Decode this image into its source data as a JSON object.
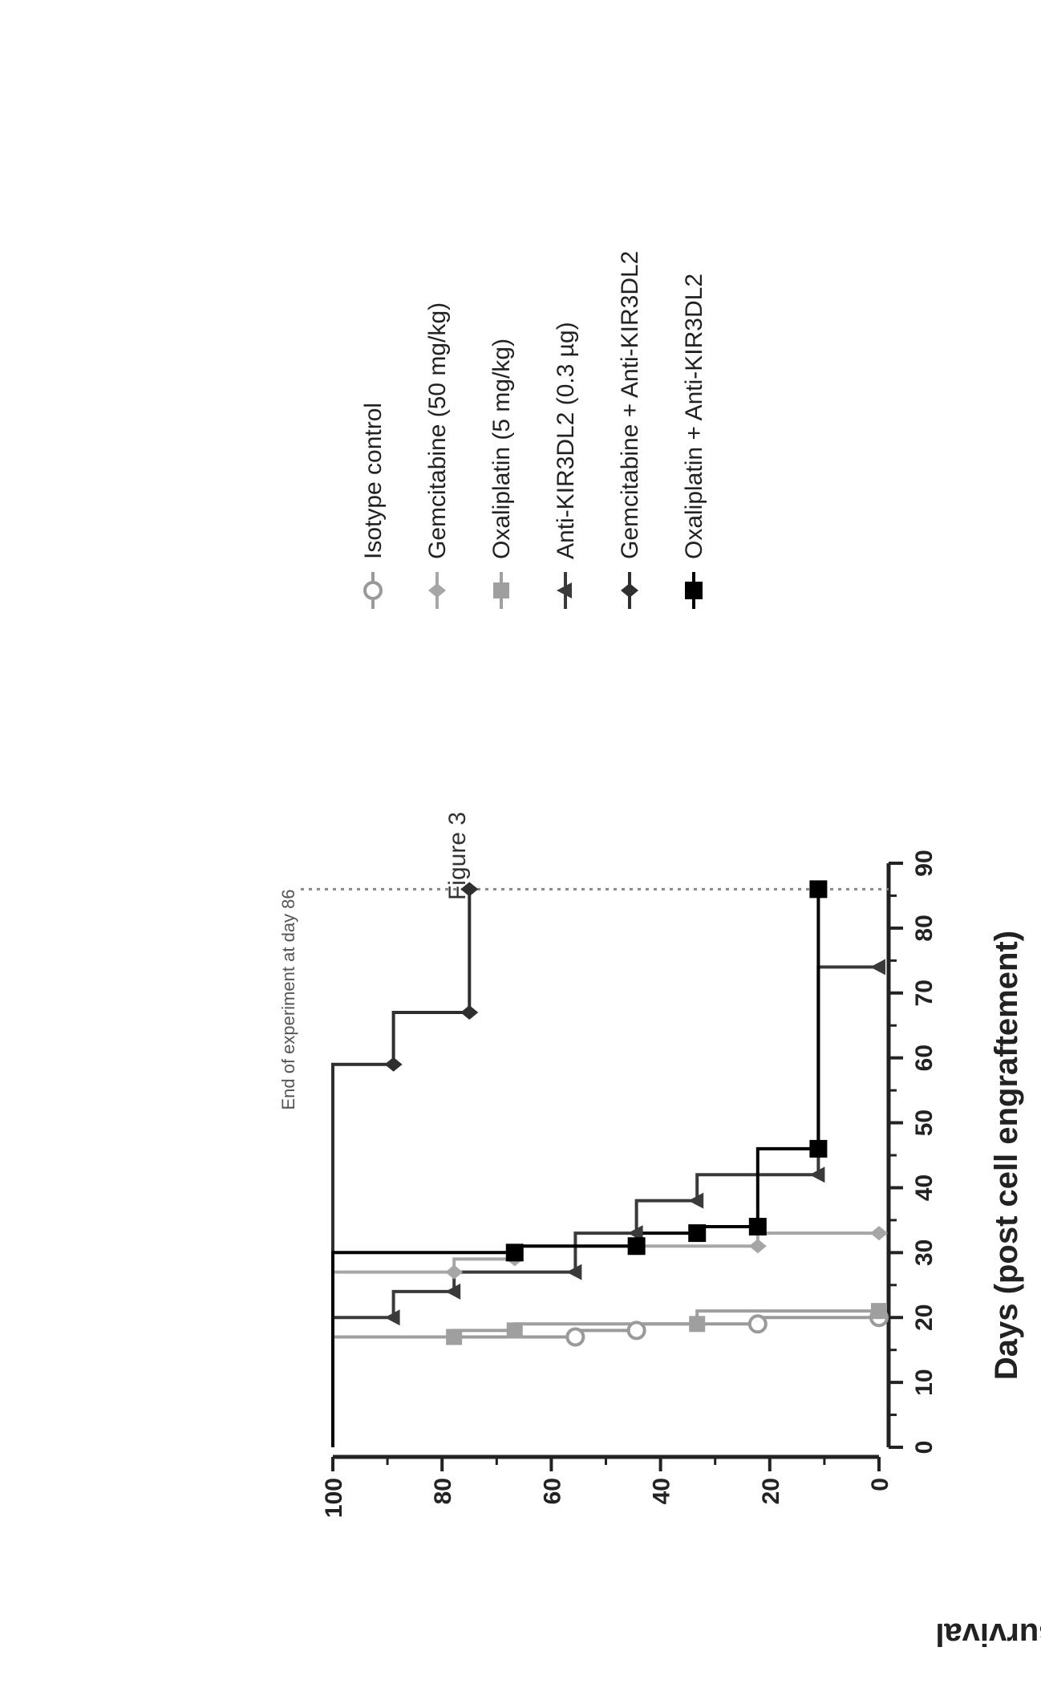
{
  "figure_label": "Figure 3",
  "chart_data": {
    "type": "line",
    "step": true,
    "xlabel": "Days (post cell engraftement)",
    "ylabel": "Percent mice survival",
    "xlim": [
      0,
      90
    ],
    "ylim": [
      0,
      100
    ],
    "x_ticks": [
      0,
      10,
      20,
      30,
      40,
      50,
      60,
      70,
      80,
      90
    ],
    "y_ticks": [
      0,
      20,
      40,
      60,
      80,
      100
    ],
    "grid": false,
    "rotated": "page rotated 90 degrees counter-clockwise",
    "legend_position": "right of plot",
    "annotation": {
      "text": "End of experiment at day 86",
      "x": 86
    },
    "series": [
      {
        "name": "Isotype control",
        "color": "#9a9a9a",
        "marker": "open-circle",
        "points": [
          [
            0,
            100
          ],
          [
            17,
            100
          ],
          [
            17,
            55.6
          ],
          [
            18,
            55.6
          ],
          [
            18,
            44.4
          ],
          [
            19,
            44.4
          ],
          [
            19,
            22.2
          ],
          [
            20,
            22.2
          ],
          [
            20,
            0
          ]
        ]
      },
      {
        "name": "Gemcitabine (50 mg/kg)",
        "color": "#a6a6a6",
        "marker": "diamond",
        "points": [
          [
            0,
            100
          ],
          [
            27,
            100
          ],
          [
            27,
            77.8
          ],
          [
            29,
            77.8
          ],
          [
            29,
            66.7
          ],
          [
            31,
            66.7
          ],
          [
            31,
            22.2
          ],
          [
            33,
            22.2
          ],
          [
            33,
            0
          ]
        ]
      },
      {
        "name": "Oxaliplatin (5 mg/kg)",
        "color": "#9f9f9f",
        "marker": "square",
        "points": [
          [
            0,
            100
          ],
          [
            17,
            100
          ],
          [
            17,
            77.8
          ],
          [
            18,
            77.8
          ],
          [
            18,
            66.7
          ],
          [
            19,
            66.7
          ],
          [
            19,
            33.3
          ],
          [
            21,
            33.3
          ],
          [
            21,
            0
          ]
        ]
      },
      {
        "name": "Anti-KIR3DL2 (0.3 µg)",
        "color": "#3a3a3a",
        "marker": "triangle",
        "points": [
          [
            0,
            100
          ],
          [
            20,
            100
          ],
          [
            20,
            88.9
          ],
          [
            24,
            88.9
          ],
          [
            24,
            77.8
          ],
          [
            27,
            77.8
          ],
          [
            27,
            55.6
          ],
          [
            33,
            55.6
          ],
          [
            33,
            44.4
          ],
          [
            38,
            44.4
          ],
          [
            38,
            33.3
          ],
          [
            42,
            33.3
          ],
          [
            42,
            11.1
          ],
          [
            74,
            11.1
          ],
          [
            74,
            0
          ]
        ]
      },
      {
        "name": "Gemcitabine + Anti-KIR3DL2",
        "color": "#2f2f2f",
        "marker": "diamond",
        "points": [
          [
            0,
            100
          ],
          [
            59,
            100
          ],
          [
            59,
            88.9
          ],
          [
            67,
            88.9
          ],
          [
            67,
            75
          ],
          [
            86,
            75
          ]
        ]
      },
      {
        "name": "Oxaliplatin + Anti-KIR3DL2",
        "color": "#000000",
        "marker": "filled-square",
        "points": [
          [
            0,
            100
          ],
          [
            30,
            100
          ],
          [
            30,
            66.7
          ],
          [
            31,
            66.7
          ],
          [
            31,
            44.4
          ],
          [
            33,
            44.4
          ],
          [
            33,
            33.3
          ],
          [
            34,
            33.3
          ],
          [
            34,
            22.2
          ],
          [
            46,
            22.2
          ],
          [
            46,
            11.1
          ],
          [
            86,
            11.1
          ]
        ]
      }
    ]
  }
}
